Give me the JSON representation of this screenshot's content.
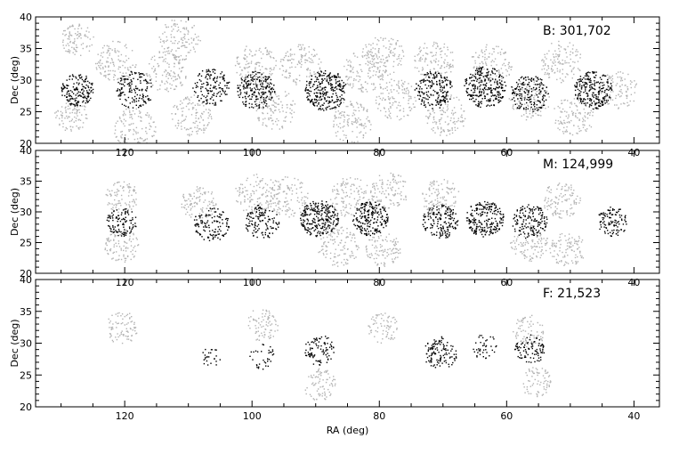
{
  "chart_data": [
    {
      "type": "scatter",
      "panel_label": "B: 301,702",
      "xlabel": "",
      "ylabel": "Dec (deg)",
      "xlim": [
        134,
        36
      ],
      "ylim": [
        20,
        40
      ],
      "x_ticks": [
        "120",
        "100",
        "80",
        "60",
        "40"
      ],
      "y_ticks": [
        "20",
        "25",
        "30",
        "35",
        "40"
      ],
      "grid": false,
      "series": [
        {
          "shade": "light",
          "color": "#b4b4b4",
          "fields": [
            {
              "ra": 127.5,
              "dec": 36.5,
              "r": 2.6,
              "n": 90
            },
            {
              "ra": 128.5,
              "dec": 24.5,
              "r": 2.6,
              "n": 90
            },
            {
              "ra": 121.5,
              "dec": 33.0,
              "r": 3.3,
              "n": 120
            },
            {
              "ra": 118.5,
              "dec": 22.5,
              "r": 3.3,
              "n": 120
            },
            {
              "ra": 111.5,
              "dec": 36.5,
              "r": 3.3,
              "n": 120
            },
            {
              "ra": 113.5,
              "dec": 31.5,
              "r": 3.3,
              "n": 120
            },
            {
              "ra": 109.5,
              "dec": 24.5,
              "r": 3.3,
              "n": 120
            },
            {
              "ra": 99.5,
              "dec": 32.5,
              "r": 3.3,
              "n": 120
            },
            {
              "ra": 96.5,
              "dec": 25.5,
              "r": 3.3,
              "n": 120
            },
            {
              "ra": 92.5,
              "dec": 32.5,
              "r": 3.3,
              "n": 120
            },
            {
              "ra": 84.5,
              "dec": 23.5,
              "r": 3.3,
              "n": 120
            },
            {
              "ra": 82.5,
              "dec": 31.5,
              "r": 3.3,
              "n": 120
            },
            {
              "ra": 79.5,
              "dec": 34.0,
              "r": 3.3,
              "n": 120
            },
            {
              "ra": 77.5,
              "dec": 27.0,
              "r": 3.3,
              "n": 120
            },
            {
              "ra": 71.5,
              "dec": 33.0,
              "r": 3.3,
              "n": 120
            },
            {
              "ra": 69.5,
              "dec": 24.5,
              "r": 3.3,
              "n": 120
            },
            {
              "ra": 62.5,
              "dec": 32.5,
              "r": 3.3,
              "n": 120
            },
            {
              "ra": 56.5,
              "dec": 27.0,
              "r": 3.3,
              "n": 120
            },
            {
              "ra": 51.5,
              "dec": 33.0,
              "r": 3.3,
              "n": 120
            },
            {
              "ra": 49.5,
              "dec": 24.5,
              "r": 3.3,
              "n": 120
            },
            {
              "ra": 42.5,
              "dec": 28.5,
              "r": 3.0,
              "n": 100
            }
          ]
        },
        {
          "shade": "dark",
          "color": "#000000",
          "fields": [
            {
              "ra": 127.5,
              "dec": 28.5,
              "r": 2.6,
              "n": 170
            },
            {
              "ra": 118.5,
              "dec": 28.5,
              "r": 3.0,
              "n": 150
            },
            {
              "ra": 106.5,
              "dec": 29.0,
              "r": 3.0,
              "n": 140
            },
            {
              "ra": 99.5,
              "dec": 28.5,
              "r": 3.0,
              "n": 210
            },
            {
              "ra": 88.5,
              "dec": 28.5,
              "r": 3.3,
              "n": 270
            },
            {
              "ra": 71.5,
              "dec": 28.5,
              "r": 3.0,
              "n": 190
            },
            {
              "ra": 63.5,
              "dec": 29.0,
              "r": 3.3,
              "n": 260
            },
            {
              "ra": 56.5,
              "dec": 28.0,
              "r": 3.0,
              "n": 170
            },
            {
              "ra": 46.5,
              "dec": 28.5,
              "r": 3.0,
              "n": 240
            }
          ]
        }
      ]
    },
    {
      "type": "scatter",
      "panel_label": "M: 124,999",
      "xlabel": "",
      "ylabel": "Dec (deg)",
      "xlim": [
        134,
        36
      ],
      "ylim": [
        20,
        40
      ],
      "x_ticks": [
        "120",
        "100",
        "80",
        "60",
        "40"
      ],
      "y_ticks": [
        "20",
        "25",
        "30",
        "35",
        "40"
      ],
      "grid": false,
      "series": [
        {
          "shade": "light",
          "color": "#b4b4b4",
          "fields": [
            {
              "ra": 120.5,
              "dec": 32.5,
              "r": 2.6,
              "n": 90
            },
            {
              "ra": 120.5,
              "dec": 24.5,
              "r": 2.8,
              "n": 100
            },
            {
              "ra": 108.5,
              "dec": 31.5,
              "r": 2.8,
              "n": 100
            },
            {
              "ra": 99.5,
              "dec": 33.0,
              "r": 3.3,
              "n": 120
            },
            {
              "ra": 94.5,
              "dec": 32.5,
              "r": 3.3,
              "n": 120
            },
            {
              "ra": 86.5,
              "dec": 24.5,
              "r": 3.3,
              "n": 120
            },
            {
              "ra": 84.5,
              "dec": 32.5,
              "r": 3.3,
              "n": 120
            },
            {
              "ra": 78.5,
              "dec": 33.5,
              "r": 3.0,
              "n": 110
            },
            {
              "ra": 79.5,
              "dec": 24.0,
              "r": 2.8,
              "n": 100
            },
            {
              "ra": 70.5,
              "dec": 32.5,
              "r": 3.0,
              "n": 110
            },
            {
              "ra": 56.5,
              "dec": 25.0,
              "r": 3.0,
              "n": 110
            },
            {
              "ra": 51.5,
              "dec": 32.0,
              "r": 3.0,
              "n": 110
            },
            {
              "ra": 50.5,
              "dec": 24.0,
              "r": 2.8,
              "n": 100
            }
          ]
        },
        {
          "shade": "dark",
          "color": "#000000",
          "fields": [
            {
              "ra": 120.5,
              "dec": 28.5,
              "r": 2.4,
              "n": 110
            },
            {
              "ra": 106.5,
              "dec": 28.0,
              "r": 2.8,
              "n": 120
            },
            {
              "ra": 98.5,
              "dec": 28.5,
              "r": 2.8,
              "n": 130
            },
            {
              "ra": 89.5,
              "dec": 29.0,
              "r": 3.0,
              "n": 250
            },
            {
              "ra": 81.5,
              "dec": 29.0,
              "r": 2.8,
              "n": 210
            },
            {
              "ra": 70.5,
              "dec": 28.5,
              "r": 2.8,
              "n": 160
            },
            {
              "ra": 63.5,
              "dec": 29.0,
              "r": 3.0,
              "n": 220
            },
            {
              "ra": 56.5,
              "dec": 28.5,
              "r": 2.8,
              "n": 150
            },
            {
              "ra": 43.5,
              "dec": 28.5,
              "r": 2.4,
              "n": 110
            }
          ]
        }
      ]
    },
    {
      "type": "scatter",
      "panel_label": "F: 21,523",
      "xlabel": "RA (deg)",
      "ylabel": "Dec (deg)",
      "xlim": [
        134,
        36
      ],
      "ylim": [
        20,
        40
      ],
      "x_ticks": [
        "120",
        "100",
        "80",
        "60",
        "40"
      ],
      "y_ticks": [
        "20",
        "25",
        "30",
        "35",
        "40"
      ],
      "grid": false,
      "series": [
        {
          "shade": "light",
          "color": "#b4b4b4",
          "fields": [
            {
              "ra": 120.5,
              "dec": 32.5,
              "r": 2.6,
              "n": 80
            },
            {
              "ra": 98.5,
              "dec": 33.0,
              "r": 2.6,
              "n": 80
            },
            {
              "ra": 89.5,
              "dec": 23.5,
              "r": 2.6,
              "n": 80
            },
            {
              "ra": 79.5,
              "dec": 32.5,
              "r": 2.4,
              "n": 70
            },
            {
              "ra": 56.5,
              "dec": 32.0,
              "r": 2.6,
              "n": 80
            },
            {
              "ra": 55.5,
              "dec": 24.0,
              "r": 2.4,
              "n": 70
            }
          ]
        },
        {
          "shade": "dark",
          "color": "#000000",
          "fields": [
            {
              "ra": 106.5,
              "dec": 28.0,
              "r": 1.6,
              "n": 25
            },
            {
              "ra": 98.5,
              "dec": 28.0,
              "r": 2.0,
              "n": 35
            },
            {
              "ra": 89.5,
              "dec": 29.0,
              "r": 2.4,
              "n": 90
            },
            {
              "ra": 70.5,
              "dec": 28.5,
              "r": 2.6,
              "n": 120
            },
            {
              "ra": 63.5,
              "dec": 29.5,
              "r": 2.0,
              "n": 40
            },
            {
              "ra": 56.5,
              "dec": 29.0,
              "r": 2.4,
              "n": 90
            }
          ]
        }
      ]
    }
  ]
}
